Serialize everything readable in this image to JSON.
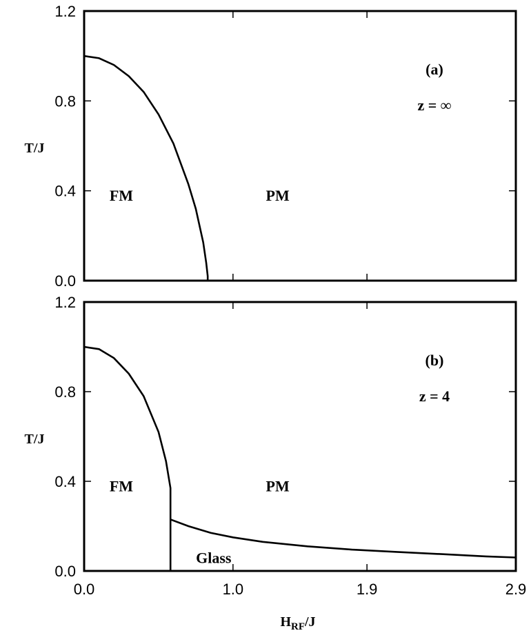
{
  "chart_data": [
    {
      "type": "line",
      "panel_label": "(a)",
      "annotation": "z = ∞",
      "ylabel": "T/J",
      "xlim": [
        0.0,
        2.9
      ],
      "ylim": [
        0.0,
        1.2
      ],
      "yticks": [
        "0.0",
        "0.4",
        "0.8",
        "1.2"
      ],
      "regions": [
        {
          "label": "FM",
          "x": 0.25,
          "y": 0.38
        },
        {
          "label": "PM",
          "x": 1.3,
          "y": 0.38
        }
      ],
      "series": [
        {
          "x": [
            0.0,
            0.1,
            0.2,
            0.3,
            0.4,
            0.5,
            0.6,
            0.7,
            0.75,
            0.8,
            0.82,
            0.83,
            0.83
          ],
          "y": [
            1.0,
            0.99,
            0.96,
            0.91,
            0.84,
            0.74,
            0.61,
            0.43,
            0.32,
            0.17,
            0.08,
            0.02,
            0.0
          ]
        }
      ]
    },
    {
      "type": "line",
      "panel_label": "(b)",
      "annotation": "z = 4",
      "ylabel": "T/J",
      "xlabel": "H",
      "xlabel_sub": "RF",
      "xlabel_suffix": "/J",
      "xlim": [
        0.0,
        2.9
      ],
      "ylim": [
        0.0,
        1.2
      ],
      "xticks": [
        "0.0",
        "1.0",
        "1.9",
        "2.9"
      ],
      "yticks": [
        "0.0",
        "0.4",
        "0.8",
        "1.2"
      ],
      "regions": [
        {
          "label": "FM",
          "x": 0.25,
          "y": 0.38
        },
        {
          "label": "PM",
          "x": 1.3,
          "y": 0.38
        },
        {
          "label": "Glass",
          "x": 0.87,
          "y": 0.06
        }
      ],
      "series": [
        {
          "x": [
            0.0,
            0.1,
            0.2,
            0.3,
            0.4,
            0.5,
            0.55,
            0.58,
            0.58,
            0.58
          ],
          "y": [
            1.0,
            0.99,
            0.95,
            0.88,
            0.78,
            0.62,
            0.49,
            0.37,
            0.3,
            0.0
          ]
        },
        {
          "x": [
            0.58,
            0.7,
            0.85,
            1.0,
            1.2,
            1.5,
            1.8,
            2.1,
            2.4,
            2.7,
            2.9
          ],
          "y": [
            0.23,
            0.2,
            0.17,
            0.15,
            0.13,
            0.11,
            0.095,
            0.085,
            0.075,
            0.065,
            0.06
          ]
        },
        {
          "x": [
            0.58,
            0.62
          ],
          "y": [
            0.0,
            0.0
          ]
        }
      ]
    }
  ]
}
